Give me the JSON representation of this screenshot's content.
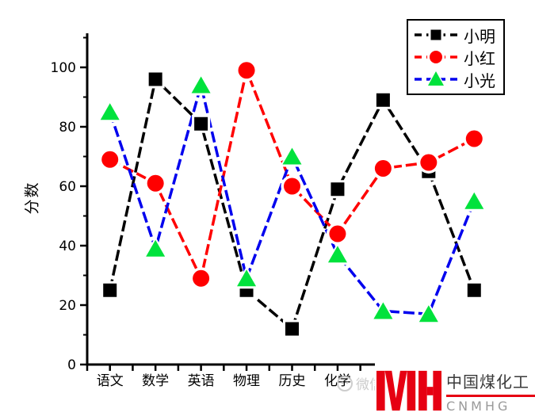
{
  "watermark": {
    "text": "微信",
    "color": "#c4c4c4"
  },
  "logo": {
    "monogram": "MH",
    "brand_cn": "中国煤化工",
    "brand_en": "CNMHG",
    "accent_color": "#e60012",
    "cn_text_color": "#3a3a3a",
    "en_text_color": "#9a9a9a"
  },
  "chart_data": {
    "type": "line",
    "title": "",
    "xlabel": "",
    "ylabel": "分数",
    "ylim": [
      0,
      110
    ],
    "yticks": [
      0,
      20,
      40,
      60,
      80,
      100
    ],
    "grid": false,
    "legend_position": "top-right",
    "categories": [
      "语文",
      "数学",
      "英语",
      "物理",
      "历史",
      "化学",
      "",
      "",
      ""
    ],
    "categories_note": "last three category labels are hidden behind the CNMHG logo overlay",
    "series": [
      {
        "name": "小明",
        "color": "#000000",
        "marker": "square",
        "marker_color": "#000000",
        "values": [
          25,
          96,
          81,
          25,
          12,
          59,
          89,
          65,
          25
        ]
      },
      {
        "name": "小红",
        "color": "#ff0000",
        "marker": "circle",
        "marker_color": "#ff0000",
        "values": [
          69,
          61,
          29,
          99,
          60,
          44,
          66,
          68,
          76
        ]
      },
      {
        "name": "小光",
        "color": "#0000ee",
        "marker": "triangle",
        "marker_color": "#00e23c",
        "values": [
          85,
          39,
          94,
          29,
          70,
          37,
          18,
          17,
          55
        ]
      }
    ]
  }
}
